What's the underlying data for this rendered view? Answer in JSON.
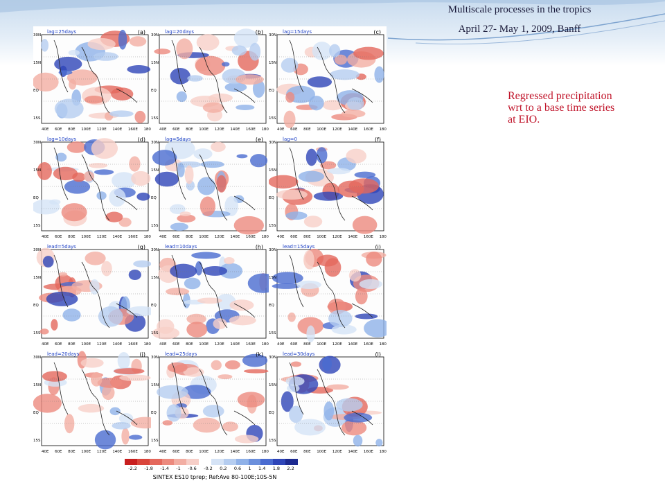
{
  "header": {
    "line1": "Multiscale processes in the tropics",
    "line2": "April 27- May 1, 2009, Banff"
  },
  "description": "Regressed precipitation wrt to a base time series at  EIO.",
  "panels": [
    {
      "lag": "lag=25days",
      "letter": "(a)"
    },
    {
      "lag": "lag=20days",
      "letter": "(b)"
    },
    {
      "lag": "lag=15days",
      "letter": "(c)"
    },
    {
      "lag": "lag=10days",
      "letter": "(d)"
    },
    {
      "lag": "lag=5days",
      "letter": "(e)"
    },
    {
      "lag": "lag=0",
      "letter": "(f)"
    },
    {
      "lag": "lead=5days",
      "letter": "(g)"
    },
    {
      "lag": "lead=10days",
      "letter": "(h)"
    },
    {
      "lag": "lead=15days",
      "letter": "(i)"
    },
    {
      "lag": "lead=20days",
      "letter": "(j)"
    },
    {
      "lag": "lead=25days",
      "letter": "(k)"
    },
    {
      "lag": "lead=30days",
      "letter": "(l)"
    }
  ],
  "yticks": [
    "30N",
    "15N",
    "EQ",
    "15S"
  ],
  "xticks": [
    "40E",
    "60E",
    "80E",
    "100E",
    "120E",
    "140E",
    "160E",
    "180"
  ],
  "colorbar": {
    "ticks": [
      "-2.2",
      "-1.8",
      "-1.4",
      "-1",
      "-0.6",
      "-0.2",
      "0.2",
      "0.6",
      "1",
      "1.4",
      "1.8",
      "2.2"
    ],
    "colors": [
      "#c81f1f",
      "#d9453b",
      "#e4685c",
      "#ec8a7e",
      "#f2aea3",
      "#f7cfc8",
      "#ffffff",
      "#d5e3f6",
      "#b5cdf0",
      "#8fb1e8",
      "#6b8fdc",
      "#4a6bd0",
      "#2e45b8",
      "#1c2a90"
    ],
    "caption": "SINTEX ES10 tprep; Ref:Ave 80-100E;10S-5N"
  }
}
